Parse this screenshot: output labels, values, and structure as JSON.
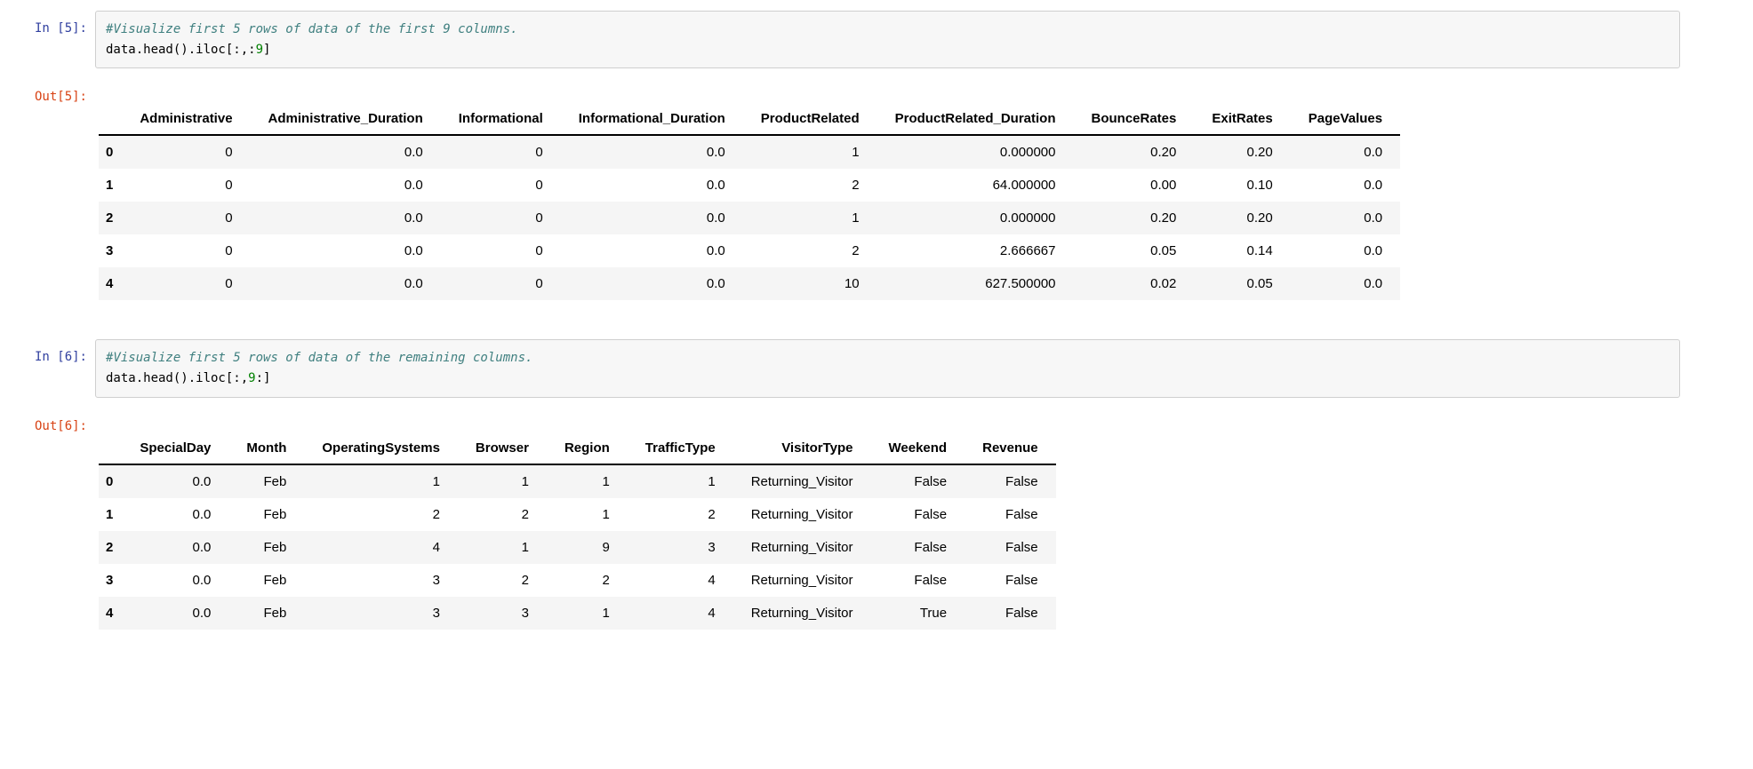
{
  "colors": {
    "in_prompt": "#303F9F",
    "out_prompt": "#D84315",
    "comment": "#408080",
    "number": "#008000",
    "row_stripe": "#f5f5f5",
    "input_bg": "#f7f7f7",
    "input_border": "#cfcfcf"
  },
  "cells": [
    {
      "in_prompt": "In [5]:",
      "out_prompt": "Out[5]:",
      "code": [
        [
          {
            "text": "#Visualize first 5 rows of data of the first 9 columns.",
            "style": "comment"
          }
        ],
        [
          {
            "text": "data.head().iloc[:,:",
            "style": "plain"
          },
          {
            "text": "9",
            "style": "number"
          },
          {
            "text": "]",
            "style": "plain"
          }
        ]
      ],
      "table": {
        "headers": [
          "Administrative",
          "Administrative_Duration",
          "Informational",
          "Informational_Duration",
          "ProductRelated",
          "ProductRelated_Duration",
          "BounceRates",
          "ExitRates",
          "PageValues"
        ],
        "rows": [
          {
            "index": "0",
            "values": [
              "0",
              "0.0",
              "0",
              "0.0",
              "1",
              "0.000000",
              "0.20",
              "0.20",
              "0.0"
            ]
          },
          {
            "index": "1",
            "values": [
              "0",
              "0.0",
              "0",
              "0.0",
              "2",
              "64.000000",
              "0.00",
              "0.10",
              "0.0"
            ]
          },
          {
            "index": "2",
            "values": [
              "0",
              "0.0",
              "0",
              "0.0",
              "1",
              "0.000000",
              "0.20",
              "0.20",
              "0.0"
            ]
          },
          {
            "index": "3",
            "values": [
              "0",
              "0.0",
              "0",
              "0.0",
              "2",
              "2.666667",
              "0.05",
              "0.14",
              "0.0"
            ]
          },
          {
            "index": "4",
            "values": [
              "0",
              "0.0",
              "0",
              "0.0",
              "10",
              "627.500000",
              "0.02",
              "0.05",
              "0.0"
            ]
          }
        ]
      }
    },
    {
      "in_prompt": "In [6]:",
      "out_prompt": "Out[6]:",
      "code": [
        [
          {
            "text": "#Visualize first 5 rows of data of the remaining columns.",
            "style": "comment"
          }
        ],
        [
          {
            "text": "data.head().iloc[:,",
            "style": "plain"
          },
          {
            "text": "9",
            "style": "number"
          },
          {
            "text": ":]",
            "style": "plain"
          }
        ]
      ],
      "table": {
        "headers": [
          "SpecialDay",
          "Month",
          "OperatingSystems",
          "Browser",
          "Region",
          "TrafficType",
          "VisitorType",
          "Weekend",
          "Revenue"
        ],
        "rows": [
          {
            "index": "0",
            "values": [
              "0.0",
              "Feb",
              "1",
              "1",
              "1",
              "1",
              "Returning_Visitor",
              "False",
              "False"
            ]
          },
          {
            "index": "1",
            "values": [
              "0.0",
              "Feb",
              "2",
              "2",
              "1",
              "2",
              "Returning_Visitor",
              "False",
              "False"
            ]
          },
          {
            "index": "2",
            "values": [
              "0.0",
              "Feb",
              "4",
              "1",
              "9",
              "3",
              "Returning_Visitor",
              "False",
              "False"
            ]
          },
          {
            "index": "3",
            "values": [
              "0.0",
              "Feb",
              "3",
              "2",
              "2",
              "4",
              "Returning_Visitor",
              "False",
              "False"
            ]
          },
          {
            "index": "4",
            "values": [
              "0.0",
              "Feb",
              "3",
              "3",
              "1",
              "4",
              "Returning_Visitor",
              "True",
              "False"
            ]
          }
        ]
      }
    }
  ]
}
